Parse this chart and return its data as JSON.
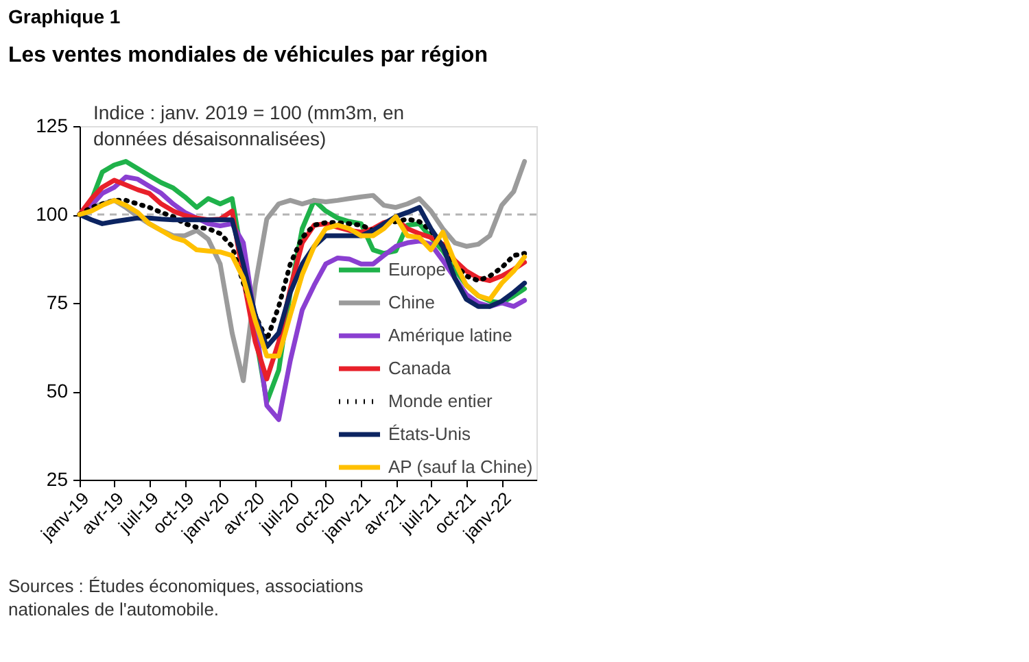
{
  "chart_data": {
    "type": "line",
    "title": "Graphique 1",
    "subtitle": "Les ventes mondiales de véhicules par région",
    "annotations": [
      "Indice : janv. 2019 = 100 (mm3m, en données désaisonnalisées)",
      "Sources : Études économiques, associations nationales de l'automobile."
    ],
    "x": [
      "2019-01",
      "2019-02",
      "2019-03",
      "2019-04",
      "2019-05",
      "2019-06",
      "2019-07",
      "2019-08",
      "2019-09",
      "2019-10",
      "2019-11",
      "2019-12",
      "2020-01",
      "2020-02",
      "2020-03",
      "2020-04",
      "2020-05",
      "2020-06",
      "2020-07",
      "2020-08",
      "2020-09",
      "2020-10",
      "2020-11",
      "2020-12",
      "2021-01",
      "2021-02",
      "2021-03",
      "2021-04",
      "2021-05",
      "2021-06",
      "2021-07",
      "2021-08",
      "2021-09",
      "2021-10",
      "2021-11",
      "2021-12",
      "2022-01",
      "2022-02",
      "2022-03"
    ],
    "series": [
      {
        "name": "Europe",
        "color": "#1fb24a",
        "line_style": "solid",
        "values": [
          100,
          104,
          112,
          114,
          115,
          113,
          111,
          109,
          107.5,
          105,
          102,
          104.5,
          103,
          104.5,
          86,
          66.5,
          47,
          56,
          78,
          96,
          104,
          101,
          99,
          98,
          97.4,
          90,
          89,
          89.7,
          97,
          97.4,
          93.5,
          89.7,
          84.5,
          80,
          77,
          75.5,
          75,
          77,
          79
        ]
      },
      {
        "name": "Chine",
        "color": "#9b9b9b",
        "line_style": "solid",
        "values": [
          100,
          102,
          103,
          104,
          102,
          99.4,
          97.4,
          95.5,
          94,
          94,
          95.5,
          93,
          86,
          66.5,
          53,
          80,
          98.7,
          103,
          104,
          103,
          104,
          103.6,
          104,
          104.5,
          105,
          105.4,
          102.6,
          102,
          103,
          104.5,
          101,
          96,
          92,
          91,
          91.6,
          94,
          102.6,
          106.5,
          115
        ]
      },
      {
        "name": "Amérique latine",
        "color": "#8a3fd1",
        "line_style": "solid",
        "values": [
          100,
          102.6,
          106,
          107.7,
          110.6,
          110,
          108,
          106,
          103,
          100.6,
          99,
          97.4,
          96.8,
          97.4,
          92,
          70,
          46,
          42,
          58.7,
          73,
          80,
          86,
          87.7,
          87.4,
          86,
          86,
          88.4,
          91,
          92,
          92.5,
          91.6,
          87,
          82,
          77.4,
          75,
          74,
          75,
          74,
          75.7
        ]
      },
      {
        "name": "Canada",
        "color": "#e8202a",
        "line_style": "solid",
        "values": [
          100,
          104.5,
          107.7,
          109.7,
          108.4,
          107,
          106,
          103,
          101,
          99.7,
          99,
          98.5,
          98.7,
          101,
          82,
          64,
          53.5,
          64,
          79,
          92,
          97,
          97.4,
          96.4,
          95.5,
          95,
          96,
          97.7,
          98.7,
          96,
          94.6,
          93.5,
          91.6,
          87,
          84,
          82,
          81.3,
          82.6,
          84.5,
          86.5
        ]
      },
      {
        "name": "Monde entier",
        "color": "#000000",
        "line_style": "dotted",
        "values": [
          100,
          102,
          103,
          104,
          104,
          103,
          102,
          100.6,
          99.4,
          97.4,
          96.4,
          96,
          94.6,
          91,
          80.6,
          71.6,
          64.5,
          74,
          86,
          93.5,
          97,
          97.7,
          97.7,
          97.4,
          97,
          95.5,
          97,
          98,
          98.7,
          98,
          95.5,
          91,
          86,
          82.6,
          81.3,
          82.6,
          85,
          88.4,
          89
        ]
      },
      {
        "name": "États-Unis",
        "color": "#0c2461",
        "line_style": "solid",
        "values": [
          100,
          98.5,
          97.4,
          98,
          98.5,
          99,
          99,
          98.7,
          98.5,
          98.5,
          98.5,
          98.5,
          98.5,
          98.5,
          86,
          71.6,
          62.6,
          66.5,
          78,
          86,
          91,
          94,
          94,
          94,
          94,
          95.5,
          97.4,
          99.4,
          100.6,
          102,
          96,
          91,
          82,
          76,
          74,
          74,
          75.5,
          78,
          80.6
        ]
      },
      {
        "name": "AP (sauf la Chine)",
        "color": "#ffc000",
        "line_style": "solid",
        "values": [
          100,
          101,
          102.6,
          104,
          102.6,
          100.6,
          97.4,
          95.5,
          93.5,
          92.5,
          90,
          89.7,
          89.4,
          88.4,
          82,
          70,
          60,
          60,
          71.6,
          83,
          91,
          96,
          97,
          96,
          94,
          94,
          96,
          99.4,
          94,
          93.5,
          90,
          95,
          86.5,
          80,
          77,
          76,
          80.6,
          84,
          88
        ]
      }
    ],
    "xlim": [
      "2019-01",
      "2022-04"
    ],
    "xticks": [
      {
        "value": "2019-01",
        "label": "janv-19"
      },
      {
        "value": "2019-04",
        "label": "avr-19"
      },
      {
        "value": "2019-07",
        "label": "juil-19"
      },
      {
        "value": "2019-10",
        "label": "oct-19"
      },
      {
        "value": "2020-01",
        "label": "janv-20"
      },
      {
        "value": "2020-04",
        "label": "avr-20"
      },
      {
        "value": "2020-07",
        "label": "juil-20"
      },
      {
        "value": "2020-10",
        "label": "oct-20"
      },
      {
        "value": "2021-01",
        "label": "janv-21"
      },
      {
        "value": "2021-04",
        "label": "avr-21"
      },
      {
        "value": "2021-07",
        "label": "juil-21"
      },
      {
        "value": "2021-10",
        "label": "oct-21"
      },
      {
        "value": "2022-01",
        "label": "janv-22"
      }
    ],
    "ylim": [
      25,
      125
    ],
    "yticks": [
      25,
      50,
      75,
      100,
      125
    ],
    "ref_lines": [
      {
        "axis": "y",
        "value": 100,
        "color": "#b4b4b4",
        "line_style": "dashed"
      }
    ],
    "grid": false,
    "legend": "bottom right"
  }
}
